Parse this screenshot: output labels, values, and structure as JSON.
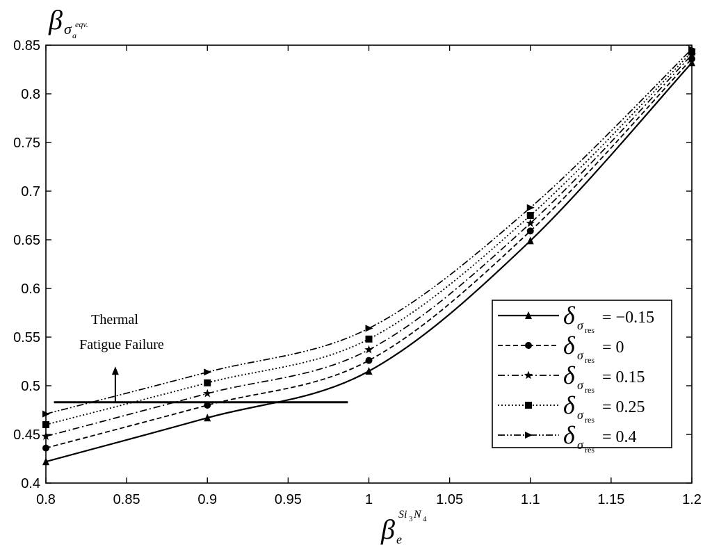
{
  "chart_data": {
    "type": "line",
    "title": "",
    "xlabel": "β_e^{Si3N4}",
    "ylabel": "β_{σa}^{eqv.}",
    "xlim": [
      0.8,
      1.2
    ],
    "ylim": [
      0.4,
      0.85
    ],
    "x_ticks": [
      "0.8",
      "0.85",
      "0.9",
      "0.95",
      "1",
      "1.05",
      "1.1",
      "1.15",
      "1.2"
    ],
    "y_ticks": [
      "0.4",
      "0.45",
      "0.5",
      "0.55",
      "0.6",
      "0.65",
      "0.7",
      "0.75",
      "0.8",
      "0.85"
    ],
    "grid": false,
    "legend_position": "bottom-right",
    "x": [
      0.8,
      0.9,
      1.0,
      1.1,
      1.2
    ],
    "series": [
      {
        "name": "δσres = −0.15",
        "label_value": "−0.15",
        "marker": "triangle-up",
        "dash": "solid",
        "values": [
          0.422,
          0.467,
          0.515,
          0.649,
          0.832
        ]
      },
      {
        "name": "δσres = 0",
        "label_value": "0",
        "marker": "circle",
        "dash": "dashed",
        "values": [
          0.436,
          0.48,
          0.526,
          0.659,
          0.836
        ]
      },
      {
        "name": "δσres = 0.15",
        "label_value": "0.15",
        "marker": "star",
        "dash": "dash-dot",
        "values": [
          0.448,
          0.492,
          0.537,
          0.667,
          0.84
        ]
      },
      {
        "name": "δσres = 0.25",
        "label_value": "0.25",
        "marker": "square",
        "dash": "dotted",
        "values": [
          0.46,
          0.503,
          0.548,
          0.675,
          0.843
        ]
      },
      {
        "name": "δσres = 0.4",
        "label_value": "0.4",
        "marker": "triangle-right",
        "dash": "dash-dot-dot",
        "values": [
          0.471,
          0.514,
          0.559,
          0.683,
          0.846
        ]
      }
    ],
    "annotation": {
      "line1": "Thermal",
      "line2": "Fatigue Failure",
      "threshold_y": 0.483,
      "threshold_x_range": [
        0.805,
        0.987
      ],
      "arrow_x": 0.843,
      "arrow_y_range": [
        0.483,
        0.517
      ]
    }
  }
}
